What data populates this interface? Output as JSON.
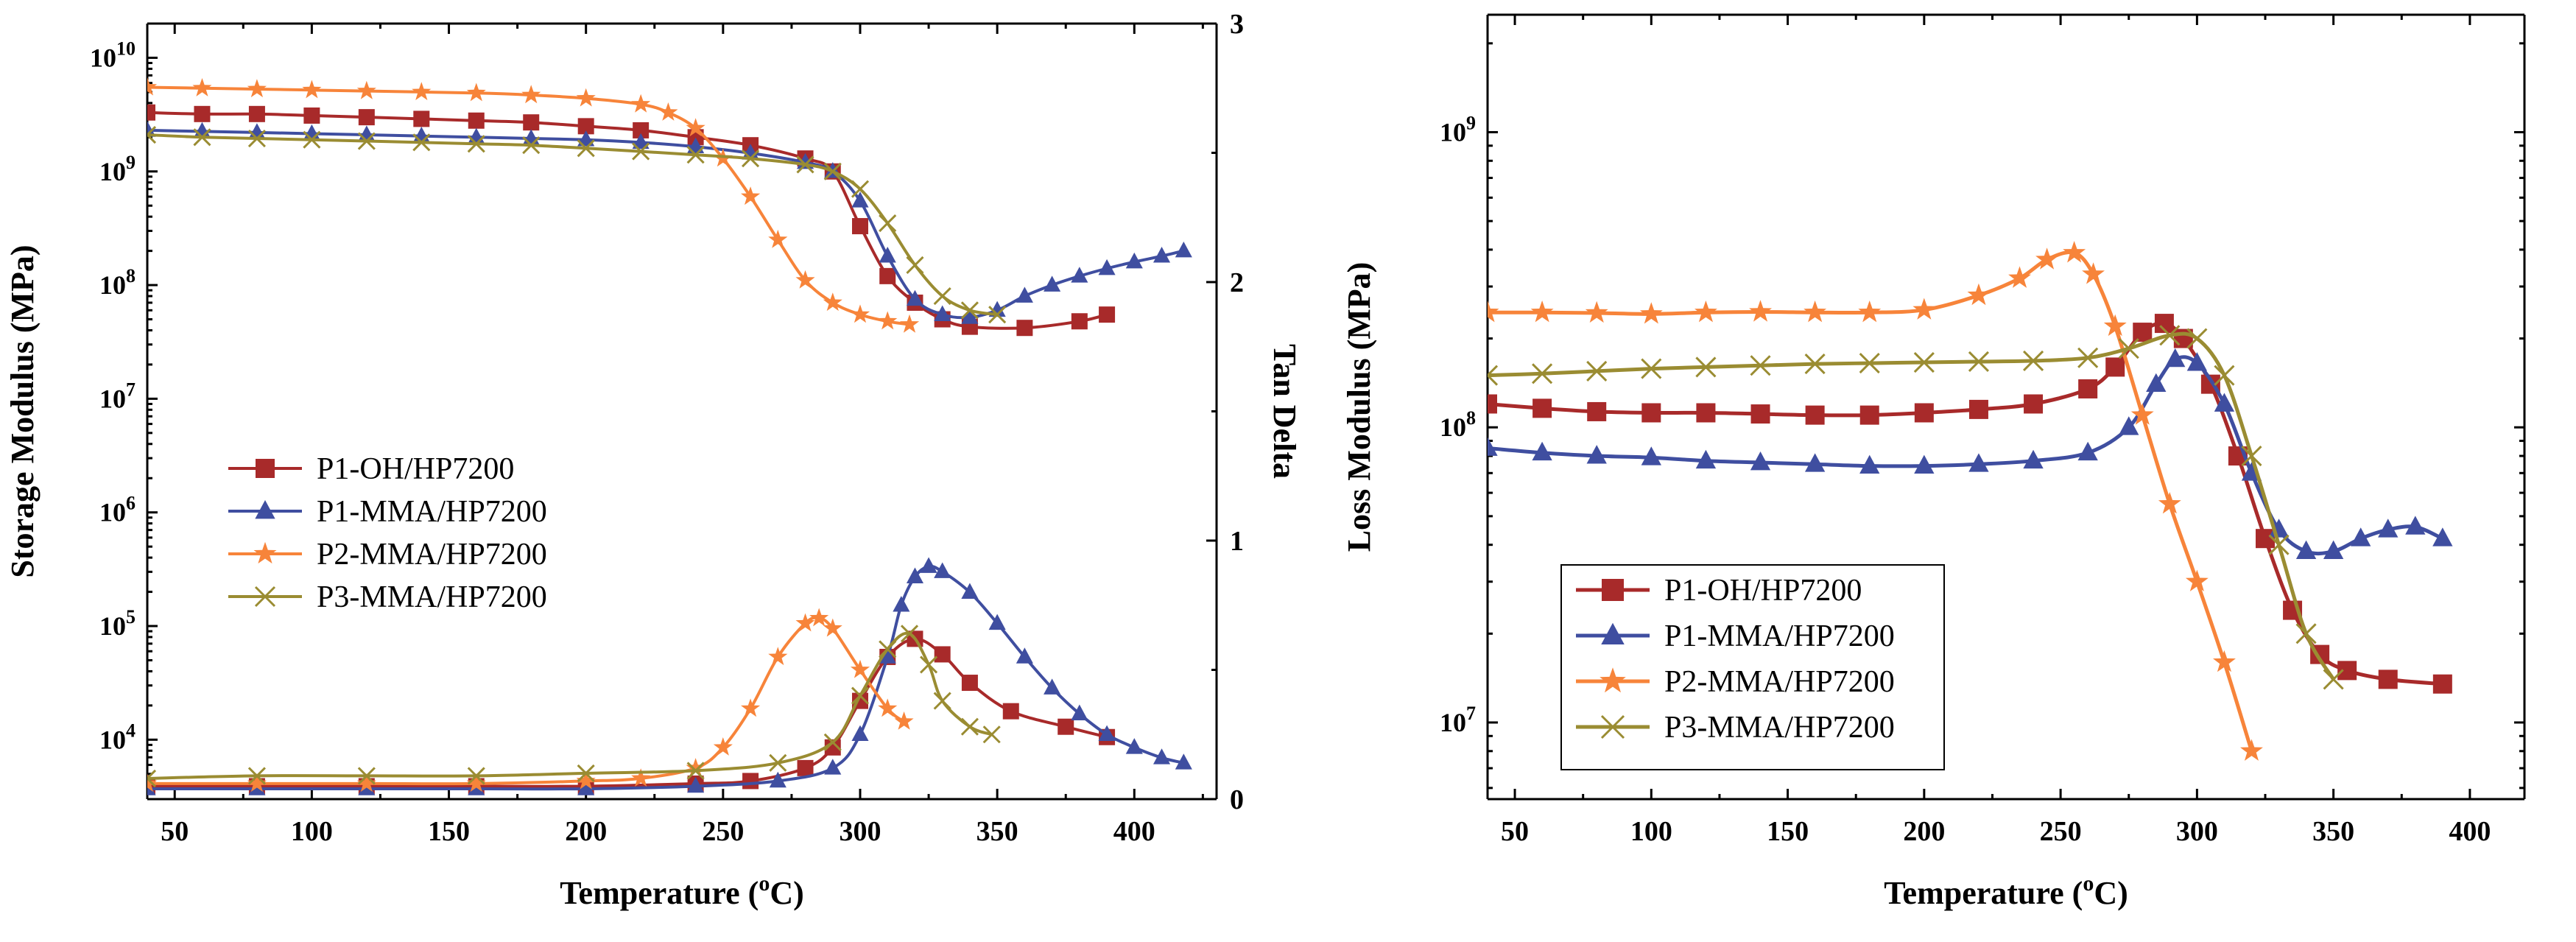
{
  "chart_data": [
    {
      "type": "line",
      "panel": "left",
      "xlabel_prefix": "Temperature (",
      "xlabel_sup": "o",
      "xlabel_suffix": "C)",
      "ylabel": "Storage Modulus (MPa)",
      "y2label": "Tan Delta",
      "y_scale": "log",
      "xlim": [
        40,
        430
      ],
      "ylim": [
        3000,
        20000000000
      ],
      "y2lim": [
        0,
        3
      ],
      "x_ticks": [
        50,
        100,
        150,
        200,
        250,
        300,
        350,
        400
      ],
      "y_ticks": [
        {
          "value": 10000,
          "base": "10",
          "exp": "4"
        },
        {
          "value": 100000,
          "base": "10",
          "exp": "5"
        },
        {
          "value": 1000000,
          "base": "10",
          "exp": "6"
        },
        {
          "value": 10000000,
          "base": "10",
          "exp": "7"
        },
        {
          "value": 100000000,
          "base": "10",
          "exp": "8"
        },
        {
          "value": 1000000000,
          "base": "10",
          "exp": "9"
        },
        {
          "value": 10000000000,
          "base": "10",
          "exp": "10"
        }
      ],
      "y2_ticks": [
        "0",
        "1",
        "2",
        "3"
      ],
      "legend": [
        "P1-OH/HP7200",
        "P1-MMA/HP7200",
        "P2-MMA/HP7200",
        "P3-MMA/HP7200"
      ],
      "legend_position": "middle-left",
      "series": [
        {
          "name": "P1-OH/HP7200",
          "color": "#a82a2a",
          "marker": "square",
          "kind": "storage",
          "x": [
            40,
            60,
            80,
            100,
            120,
            140,
            160,
            180,
            200,
            220,
            240,
            260,
            280,
            290,
            300,
            310,
            320,
            330,
            340,
            360,
            380,
            390
          ],
          "y": [
            3300000000,
            3200000000,
            3200000000,
            3100000000,
            3000000000,
            2900000000,
            2800000000,
            2700000000,
            2500000000,
            2300000000,
            2000000000,
            1700000000,
            1300000000,
            1000000000,
            330000000,
            120000000,
            70000000,
            50000000,
            43000000,
            42000000,
            48000000,
            55000000
          ]
        },
        {
          "name": "P1-MMA/HP7200",
          "color": "#3f4ea0",
          "marker": "triangle",
          "kind": "storage",
          "x": [
            40,
            60,
            80,
            100,
            120,
            140,
            160,
            180,
            200,
            220,
            240,
            260,
            280,
            290,
            300,
            310,
            320,
            330,
            340,
            350,
            360,
            370,
            380,
            390,
            400,
            410,
            418
          ],
          "y": [
            2300000000,
            2250000000,
            2200000000,
            2150000000,
            2100000000,
            2050000000,
            2000000000,
            1950000000,
            1900000000,
            1800000000,
            1650000000,
            1450000000,
            1200000000,
            1000000000,
            550000000,
            180000000,
            75000000,
            55000000,
            52000000,
            60000000,
            80000000,
            100000000,
            120000000,
            140000000,
            160000000,
            180000000,
            200000000
          ]
        },
        {
          "name": "P2-MMA/HP7200",
          "color": "#f7843a",
          "marker": "star",
          "kind": "storage",
          "x": [
            40,
            60,
            80,
            100,
            120,
            140,
            160,
            180,
            200,
            220,
            230,
            240,
            250,
            260,
            270,
            280,
            290,
            300,
            310,
            318
          ],
          "y": [
            5500000000,
            5400000000,
            5300000000,
            5200000000,
            5100000000,
            5000000000,
            4900000000,
            4700000000,
            4400000000,
            3900000000,
            3300000000,
            2400000000,
            1300000000,
            600000000,
            250000000,
            110000000,
            70000000,
            55000000,
            48000000,
            45000000
          ]
        },
        {
          "name": "P3-MMA/HP7200",
          "color": "#9a8c32",
          "marker": "x",
          "kind": "storage",
          "x": [
            40,
            60,
            80,
            100,
            120,
            140,
            160,
            180,
            200,
            220,
            240,
            260,
            280,
            290,
            300,
            310,
            320,
            330,
            340,
            350
          ],
          "y": [
            2100000000,
            2000000000,
            1950000000,
            1900000000,
            1850000000,
            1800000000,
            1750000000,
            1700000000,
            1600000000,
            1500000000,
            1400000000,
            1300000000,
            1150000000,
            1000000000,
            700000000,
            350000000,
            150000000,
            80000000,
            60000000,
            55000000
          ]
        },
        {
          "name": "P1-OH/HP7200",
          "color": "#a82a2a",
          "marker": "square",
          "kind": "tan",
          "x": [
            40,
            80,
            120,
            160,
            200,
            240,
            260,
            280,
            290,
            300,
            310,
            320,
            330,
            340,
            355,
            375,
            390
          ],
          "y": [
            0.05,
            0.05,
            0.05,
            0.05,
            0.05,
            0.06,
            0.07,
            0.12,
            0.2,
            0.38,
            0.55,
            0.62,
            0.56,
            0.45,
            0.34,
            0.28,
            0.24
          ]
        },
        {
          "name": "P1-MMA/HP7200",
          "color": "#3f4ea0",
          "marker": "triangle",
          "kind": "tan",
          "x": [
            40,
            80,
            120,
            160,
            200,
            240,
            270,
            290,
            300,
            310,
            315,
            320,
            325,
            330,
            340,
            350,
            360,
            370,
            380,
            390,
            400,
            410,
            418
          ],
          "y": [
            0.04,
            0.04,
            0.04,
            0.04,
            0.04,
            0.05,
            0.07,
            0.12,
            0.25,
            0.55,
            0.75,
            0.86,
            0.9,
            0.88,
            0.8,
            0.68,
            0.55,
            0.43,
            0.33,
            0.25,
            0.2,
            0.16,
            0.14
          ]
        },
        {
          "name": "P2-MMA/HP7200",
          "color": "#f7843a",
          "marker": "star",
          "kind": "tan",
          "x": [
            40,
            80,
            120,
            160,
            200,
            220,
            240,
            250,
            260,
            270,
            280,
            285,
            290,
            300,
            310,
            316
          ],
          "y": [
            0.06,
            0.06,
            0.06,
            0.06,
            0.07,
            0.08,
            0.12,
            0.2,
            0.35,
            0.55,
            0.68,
            0.7,
            0.66,
            0.5,
            0.35,
            0.3
          ]
        },
        {
          "name": "P3-MMA/HP7200",
          "color": "#9a8c32",
          "marker": "x",
          "kind": "tan",
          "x": [
            40,
            80,
            120,
            160,
            200,
            240,
            270,
            290,
            300,
            310,
            318,
            325,
            330,
            340,
            348
          ],
          "y": [
            0.08,
            0.09,
            0.09,
            0.09,
            0.1,
            0.11,
            0.14,
            0.22,
            0.4,
            0.58,
            0.64,
            0.52,
            0.38,
            0.28,
            0.25
          ]
        }
      ]
    },
    {
      "type": "line",
      "panel": "right",
      "xlabel_prefix": "Temperature (",
      "xlabel_sup": "o",
      "xlabel_suffix": "C)",
      "ylabel": "Loss Modulus (MPa)",
      "y_scale": "log",
      "xlim": [
        40,
        420
      ],
      "ylim": [
        5500000,
        2500000000
      ],
      "x_ticks": [
        50,
        100,
        150,
        200,
        250,
        300,
        350,
        400
      ],
      "y_ticks": [
        {
          "value": 10000000,
          "base": "10",
          "exp": "7"
        },
        {
          "value": 100000000,
          "base": "10",
          "exp": "8"
        },
        {
          "value": 1000000000,
          "base": "10",
          "exp": "9"
        }
      ],
      "legend": [
        "P1-OH/HP7200",
        "P1-MMA/HP7200",
        "P2-MMA/HP7200",
        "P3-MMA/HP7200"
      ],
      "legend_position": "bottom-left",
      "series": [
        {
          "name": "P1-OH/HP7200",
          "color": "#a82a2a",
          "marker": "square",
          "x": [
            40,
            60,
            80,
            100,
            120,
            140,
            160,
            180,
            200,
            220,
            240,
            260,
            270,
            280,
            288,
            295,
            305,
            315,
            325,
            335,
            345,
            355,
            370,
            390
          ],
          "y": [
            120000000,
            116000000,
            113000000,
            112000000,
            112000000,
            111000000,
            110000000,
            110000000,
            112000000,
            115000000,
            120000000,
            135000000,
            160000000,
            210000000,
            225000000,
            200000000,
            140000000,
            80000000,
            42000000,
            24000000,
            17000000,
            15000000,
            14000000,
            13500000
          ]
        },
        {
          "name": "P1-MMA/HP7200",
          "color": "#3f4ea0",
          "marker": "triangle",
          "x": [
            40,
            60,
            80,
            100,
            120,
            140,
            160,
            180,
            200,
            220,
            240,
            260,
            275,
            285,
            292,
            300,
            310,
            320,
            330,
            340,
            350,
            360,
            370,
            380,
            390
          ],
          "y": [
            85000000,
            82000000,
            80000000,
            79000000,
            77000000,
            76000000,
            75000000,
            74000000,
            74000000,
            75000000,
            77000000,
            82000000,
            100000000,
            140000000,
            170000000,
            165000000,
            120000000,
            70000000,
            45000000,
            38000000,
            38000000,
            42000000,
            45000000,
            46000000,
            42000000
          ]
        },
        {
          "name": "P2-MMA/HP7200",
          "color": "#f7843a",
          "marker": "star",
          "x": [
            40,
            60,
            80,
            100,
            120,
            140,
            160,
            180,
            200,
            220,
            235,
            245,
            255,
            262,
            270,
            280,
            290,
            300,
            310,
            320
          ],
          "y": [
            245000000,
            245000000,
            244000000,
            242000000,
            245000000,
            246000000,
            245000000,
            245000000,
            250000000,
            280000000,
            320000000,
            370000000,
            390000000,
            330000000,
            220000000,
            110000000,
            55000000,
            30000000,
            16000000,
            8000000
          ]
        },
        {
          "name": "P3-MMA/HP7200",
          "color": "#9a8c32",
          "marker": "x",
          "x": [
            40,
            60,
            80,
            100,
            120,
            140,
            160,
            180,
            200,
            220,
            240,
            260,
            275,
            290,
            300,
            310,
            320,
            330,
            340,
            350
          ],
          "y": [
            150000000,
            152000000,
            155000000,
            158000000,
            160000000,
            162000000,
            164000000,
            165000000,
            166000000,
            167000000,
            168000000,
            172000000,
            185000000,
            205000000,
            200000000,
            150000000,
            80000000,
            40000000,
            20000000,
            14000000
          ]
        }
      ]
    }
  ]
}
